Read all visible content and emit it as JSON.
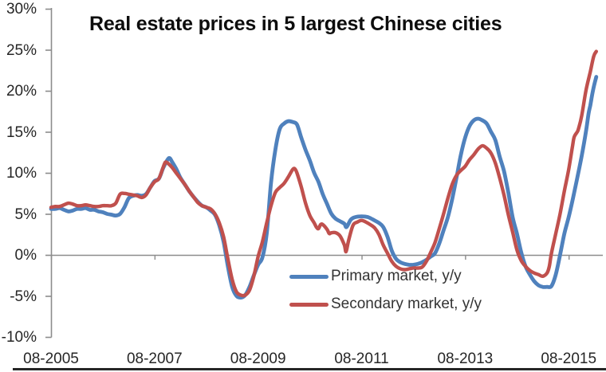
{
  "page": {
    "background": "#ffffff"
  },
  "colors": {
    "primary": "#4f81bd",
    "secondary": "#c0504d",
    "axis": "#8c8c8c",
    "tick_text": "#262626",
    "title_text": "#0d0d0d",
    "legend_text": "#333333",
    "bottom_border": "#262626"
  },
  "chart_data": {
    "type": "line",
    "title": "Real estate prices in 5 largest Chinese cities",
    "x_axis": {
      "tick_labels": [
        "08-2005",
        "08-2007",
        "08-2009",
        "08-2011",
        "08-2013",
        "08-2015"
      ],
      "tick_month_indices": [
        0,
        24,
        48,
        72,
        96,
        120
      ],
      "unit": "month index, 0 = Aug-2005, monthly data through early 2016",
      "domain_months": [
        0,
        127.5
      ]
    },
    "y_axis": {
      "tick_labels": [
        "30%",
        "25%",
        "20%",
        "15%",
        "10%",
        "5%",
        "0%",
        "-5%",
        "-10%"
      ],
      "tick_values": [
        30,
        25,
        20,
        15,
        10,
        5,
        0,
        -5,
        -10
      ],
      "range_pct": [
        -10,
        30
      ],
      "gridlines": "zero-line-only"
    },
    "legend": {
      "position": "inside-plot-bottom-center",
      "items": [
        {
          "label": "Primary market, y/y",
          "series": "primary"
        },
        {
          "label": "Secondary market, y/y",
          "series": "secondary"
        }
      ]
    },
    "series": [
      {
        "id": "primary",
        "name": "Primary market, y/y",
        "color": "#4f81bd",
        "points_month_pct": [
          [
            0,
            5.6
          ],
          [
            1,
            5.6
          ],
          [
            2,
            5.7
          ],
          [
            3,
            5.5
          ],
          [
            4,
            5.3
          ],
          [
            5,
            5.4
          ],
          [
            6,
            5.6
          ],
          [
            7,
            5.6
          ],
          [
            8,
            5.7
          ],
          [
            9,
            5.5
          ],
          [
            10,
            5.5
          ],
          [
            11,
            5.3
          ],
          [
            12,
            5.2
          ],
          [
            13,
            5.0
          ],
          [
            14,
            4.9
          ],
          [
            15,
            4.8
          ],
          [
            16,
            5.0
          ],
          [
            17,
            5.8
          ],
          [
            18,
            6.9
          ],
          [
            19,
            7.2
          ],
          [
            20,
            7.3
          ],
          [
            21,
            7.2
          ],
          [
            22,
            7.4
          ],
          [
            23,
            8.2
          ],
          [
            24,
            9.0
          ],
          [
            25,
            9.3
          ],
          [
            26,
            10.6
          ],
          [
            27,
            11.6
          ],
          [
            27.5,
            11.8
          ],
          [
            28,
            11.4
          ],
          [
            29,
            10.5
          ],
          [
            30,
            9.4
          ],
          [
            31,
            8.6
          ],
          [
            32,
            7.8
          ],
          [
            33,
            7.1
          ],
          [
            34,
            6.5
          ],
          [
            35,
            6.0
          ],
          [
            36,
            5.8
          ],
          [
            37,
            5.4
          ],
          [
            38,
            4.9
          ],
          [
            39,
            3.6
          ],
          [
            40,
            1.6
          ],
          [
            41,
            -1.4
          ],
          [
            42,
            -3.9
          ],
          [
            43,
            -5.0
          ],
          [
            44,
            -5.2
          ],
          [
            45,
            -4.9
          ],
          [
            46,
            -3.9
          ],
          [
            47,
            -2.5
          ],
          [
            48,
            -1.2
          ],
          [
            49,
            -0.3
          ],
          [
            50,
            2.6
          ],
          [
            51,
            8.8
          ],
          [
            52,
            12.8
          ],
          [
            53,
            15.3
          ],
          [
            54,
            16.0
          ],
          [
            55,
            16.3
          ],
          [
            56,
            16.2
          ],
          [
            57,
            15.9
          ],
          [
            58,
            14.3
          ],
          [
            59,
            12.8
          ],
          [
            60,
            11.5
          ],
          [
            61,
            10.0
          ],
          [
            62,
            8.9
          ],
          [
            63,
            7.4
          ],
          [
            64,
            6.2
          ],
          [
            65,
            5.0
          ],
          [
            66,
            4.4
          ],
          [
            67,
            4.1
          ],
          [
            68,
            3.8
          ],
          [
            68.5,
            3.4
          ],
          [
            69.5,
            4.3
          ],
          [
            70.5,
            4.6
          ],
          [
            72,
            4.7
          ],
          [
            73.5,
            4.6
          ],
          [
            75,
            4.2
          ],
          [
            76,
            3.9
          ],
          [
            77,
            3.4
          ],
          [
            78,
            2.2
          ],
          [
            79,
            0.5
          ],
          [
            80,
            -0.5
          ],
          [
            81,
            -0.9
          ],
          [
            82,
            -1.1
          ],
          [
            83,
            -1.2
          ],
          [
            84,
            -1.2
          ],
          [
            85,
            -1.1
          ],
          [
            86,
            -0.9
          ],
          [
            87,
            -0.6
          ],
          [
            88,
            -0.2
          ],
          [
            89,
            0.2
          ],
          [
            90,
            1.4
          ],
          [
            91,
            3.0
          ],
          [
            92,
            4.6
          ],
          [
            93,
            6.8
          ],
          [
            94,
            9.4
          ],
          [
            95,
            12.2
          ],
          [
            96,
            14.3
          ],
          [
            97,
            15.7
          ],
          [
            98,
            16.4
          ],
          [
            99,
            16.6
          ],
          [
            100,
            16.4
          ],
          [
            101,
            16.0
          ],
          [
            102,
            15.0
          ],
          [
            103,
            14.0
          ],
          [
            104,
            12.0
          ],
          [
            105,
            10.2
          ],
          [
            106,
            7.6
          ],
          [
            107,
            4.6
          ],
          [
            108,
            2.6
          ],
          [
            109,
            0.3
          ],
          [
            110,
            -1.4
          ],
          [
            111,
            -2.4
          ],
          [
            112,
            -3.2
          ],
          [
            113,
            -3.7
          ],
          [
            114,
            -3.9
          ],
          [
            115,
            -3.9
          ],
          [
            116,
            -3.8
          ],
          [
            117,
            -2.4
          ],
          [
            118,
            0.0
          ],
          [
            119,
            2.6
          ],
          [
            120,
            4.6
          ],
          [
            121,
            6.9
          ],
          [
            122,
            9.4
          ],
          [
            123,
            12.0
          ],
          [
            124,
            15.0
          ],
          [
            124.6,
            17.2
          ],
          [
            125,
            18.2
          ],
          [
            125.5,
            19.7
          ],
          [
            126,
            20.9
          ],
          [
            126.4,
            21.7
          ]
        ]
      },
      {
        "id": "secondary",
        "name": "Secondary market, y/y",
        "color": "#c0504d",
        "points_month_pct": [
          [
            0,
            5.8
          ],
          [
            1,
            5.9
          ],
          [
            2,
            5.9
          ],
          [
            3,
            6.1
          ],
          [
            4,
            6.3
          ],
          [
            5,
            6.2
          ],
          [
            6,
            6.0
          ],
          [
            7,
            6.0
          ],
          [
            8,
            6.1
          ],
          [
            9,
            6.0
          ],
          [
            10,
            5.9
          ],
          [
            11,
            5.9
          ],
          [
            12,
            6.0
          ],
          [
            13,
            6.0
          ],
          [
            14,
            6.0
          ],
          [
            15,
            6.3
          ],
          [
            16,
            7.4
          ],
          [
            17,
            7.5
          ],
          [
            18,
            7.4
          ],
          [
            19,
            7.3
          ],
          [
            20,
            7.2
          ],
          [
            21,
            7.0
          ],
          [
            22,
            7.3
          ],
          [
            23,
            8.2
          ],
          [
            24,
            8.9
          ],
          [
            25,
            9.3
          ],
          [
            26,
            10.7
          ],
          [
            26.5,
            11.3
          ],
          [
            27,
            11.2
          ],
          [
            28,
            10.7
          ],
          [
            29,
            10.0
          ],
          [
            30,
            9.3
          ],
          [
            31,
            8.6
          ],
          [
            32,
            7.8
          ],
          [
            33,
            7.1
          ],
          [
            34,
            6.4
          ],
          [
            35,
            6.0
          ],
          [
            36,
            5.8
          ],
          [
            37,
            5.6
          ],
          [
            38,
            5.0
          ],
          [
            39,
            3.9
          ],
          [
            40,
            2.2
          ],
          [
            41,
            -0.5
          ],
          [
            42,
            -3.0
          ],
          [
            43,
            -4.5
          ],
          [
            44,
            -4.9
          ],
          [
            45,
            -4.9
          ],
          [
            46,
            -4.3
          ],
          [
            47,
            -2.6
          ],
          [
            48,
            -0.2
          ],
          [
            49,
            1.6
          ],
          [
            50,
            3.9
          ],
          [
            51,
            6.0
          ],
          [
            52,
            7.6
          ],
          [
            53,
            8.2
          ],
          [
            54,
            8.7
          ],
          [
            55,
            9.5
          ],
          [
            56,
            10.4
          ],
          [
            56.5,
            10.5
          ],
          [
            57,
            10.0
          ],
          [
            58,
            8.3
          ],
          [
            59,
            6.3
          ],
          [
            60,
            4.8
          ],
          [
            61,
            3.9
          ],
          [
            61.5,
            3.4
          ],
          [
            62,
            3.2
          ],
          [
            62.5,
            3.7
          ],
          [
            63,
            3.7
          ],
          [
            64,
            3.1
          ],
          [
            64.5,
            2.6
          ],
          [
            65,
            2.7
          ],
          [
            66,
            2.7
          ],
          [
            67,
            2.3
          ],
          [
            68,
            1.2
          ],
          [
            68.4,
            0.4
          ],
          [
            69,
            1.8
          ],
          [
            70,
            3.6
          ],
          [
            71,
            4.0
          ],
          [
            72,
            4.2
          ],
          [
            73,
            4.0
          ],
          [
            74,
            3.7
          ],
          [
            75,
            3.3
          ],
          [
            76,
            2.5
          ],
          [
            77,
            1.2
          ],
          [
            78,
            0.2
          ],
          [
            79,
            -0.8
          ],
          [
            80,
            -1.4
          ],
          [
            81,
            -1.7
          ],
          [
            82,
            -1.8
          ],
          [
            83,
            -1.7
          ],
          [
            84,
            -1.6
          ],
          [
            85,
            -1.6
          ],
          [
            86,
            -1.5
          ],
          [
            87,
            -0.8
          ],
          [
            88,
            0.3
          ],
          [
            89,
            1.5
          ],
          [
            90,
            3.2
          ],
          [
            91,
            5.0
          ],
          [
            92,
            6.9
          ],
          [
            93,
            8.6
          ],
          [
            94,
            9.7
          ],
          [
            95,
            10.3
          ],
          [
            96,
            10.8
          ],
          [
            97,
            11.6
          ],
          [
            98,
            12.2
          ],
          [
            99,
            12.9
          ],
          [
            100,
            13.3
          ],
          [
            101,
            13.0
          ],
          [
            102,
            12.4
          ],
          [
            103,
            11.2
          ],
          [
            104,
            9.4
          ],
          [
            105,
            7.3
          ],
          [
            106,
            4.9
          ],
          [
            107,
            2.8
          ],
          [
            108,
            0.6
          ],
          [
            109,
            -0.7
          ],
          [
            110,
            -1.4
          ],
          [
            111,
            -1.9
          ],
          [
            112,
            -2.2
          ],
          [
            113,
            -2.4
          ],
          [
            114,
            -2.6
          ],
          [
            115,
            -2.2
          ],
          [
            115.5,
            -1.4
          ],
          [
            116,
            0.2
          ],
          [
            117,
            2.6
          ],
          [
            118,
            5.0
          ],
          [
            119,
            7.8
          ],
          [
            120,
            10.4
          ],
          [
            120.9,
            13.3
          ],
          [
            121.3,
            14.4
          ],
          [
            122,
            15.0
          ],
          [
            122.3,
            15.4
          ],
          [
            123,
            16.9
          ],
          [
            124,
            20.0
          ],
          [
            125,
            22.3
          ],
          [
            125.8,
            24.2
          ],
          [
            126.4,
            24.8
          ]
        ]
      }
    ]
  }
}
